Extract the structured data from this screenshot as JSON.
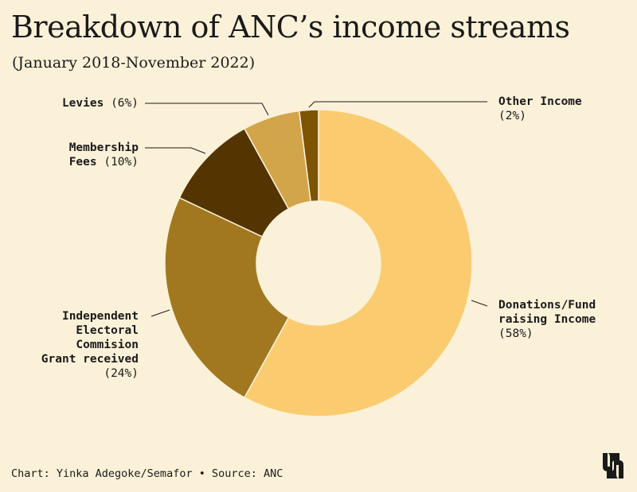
{
  "chart_data": {
    "type": "pie",
    "title": "Breakdown of ANC’s income streams",
    "subtitle": "(January 2018-November 2022)",
    "donut": true,
    "slices": [
      {
        "label_lines": [
          "Donations/Fund",
          "raising Income"
        ],
        "pct_text": "(58%)",
        "value": 58,
        "color": "#fbcb70"
      },
      {
        "label_lines": [
          "Independent",
          "Electoral",
          "Commision",
          "Grant received"
        ],
        "pct_text": "(24%)",
        "value": 24,
        "color": "#a17820"
      },
      {
        "label_lines": [
          "Membership",
          "Fees"
        ],
        "pct_text": "(10%)",
        "value": 10,
        "color": "#543400"
      },
      {
        "label_lines": [
          "Levies"
        ],
        "pct_text": "(6%)",
        "value": 6,
        "color": "#d2a54b"
      },
      {
        "label_lines": [
          "Other Income"
        ],
        "pct_text": "(2%)",
        "value": 2,
        "color": "#7d5400"
      }
    ]
  },
  "footer": "Chart: Yinka Adegoke/Semafor • Source: ANC",
  "logo": {
    "icon": "semafor-logo-icon",
    "color": "#1a1a1a"
  }
}
